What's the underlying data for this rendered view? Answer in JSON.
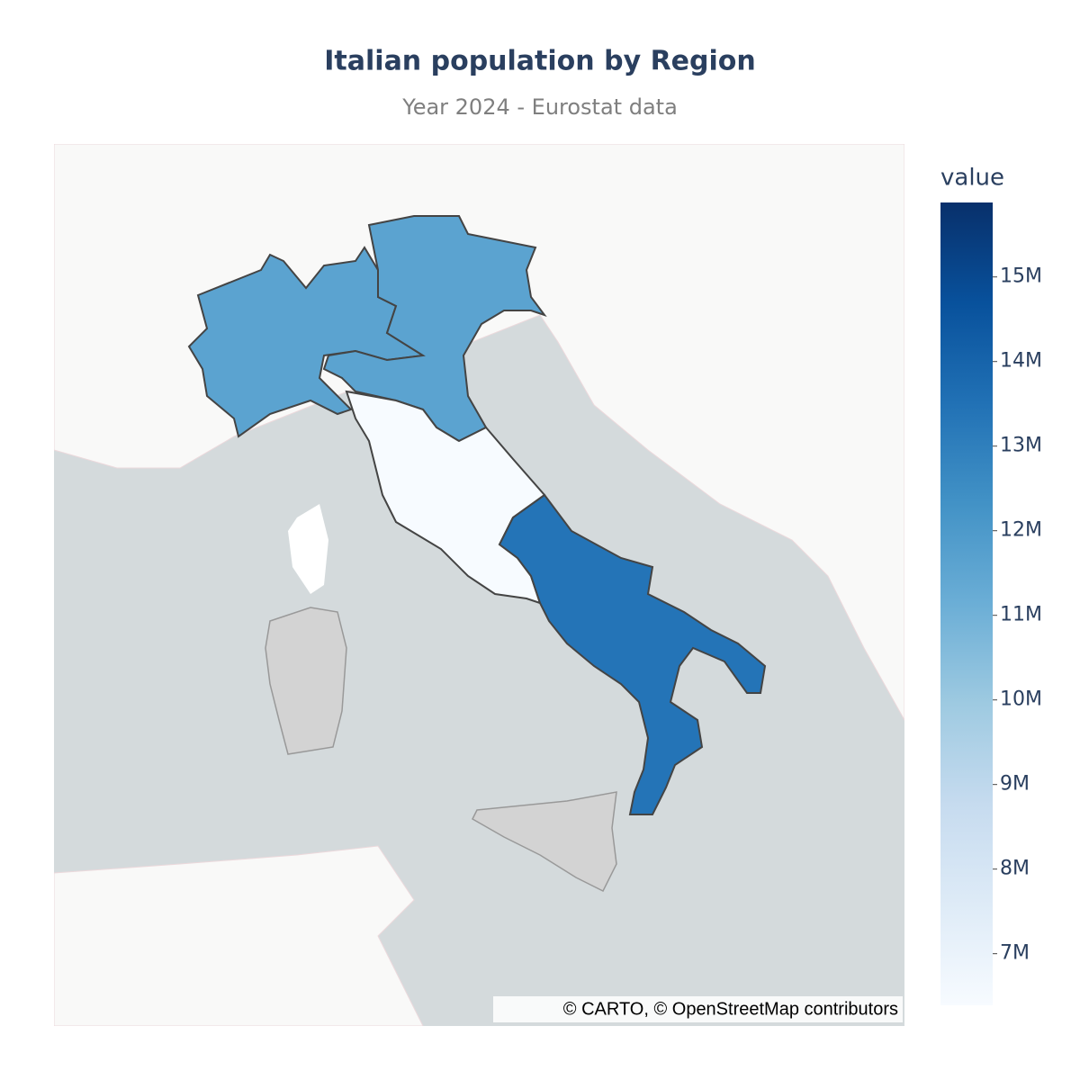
{
  "chart_data": {
    "type": "choropleth",
    "title": "Italian population by Region",
    "subtitle": "Year 2024 - Eurostat data",
    "colorbar_title": "value",
    "values": [
      11600000,
      11600000,
      6400000,
      13400000
    ],
    "colorscale": [
      "#f7fbff",
      "#deebf7",
      "#c6dbef",
      "#9ecae1",
      "#6baed6",
      "#4292c6",
      "#2171b5",
      "#08519c",
      "#08306b"
    ],
    "clim": [
      6390000,
      15880000
    ],
    "cticks": [
      {
        "value": 7000000,
        "label": "7M"
      },
      {
        "value": 8000000,
        "label": "8M"
      },
      {
        "value": 9000000,
        "label": "9M"
      },
      {
        "value": 10000000,
        "label": "10M"
      },
      {
        "value": 11000000,
        "label": "11M"
      },
      {
        "value": 12000000,
        "label": "12M"
      },
      {
        "value": 13000000,
        "label": "13M"
      },
      {
        "value": 14000000,
        "label": "14M"
      },
      {
        "value": 15000000,
        "label": "15M"
      }
    ],
    "attribution": "© CARTO, © OpenStreetMap contributors"
  }
}
